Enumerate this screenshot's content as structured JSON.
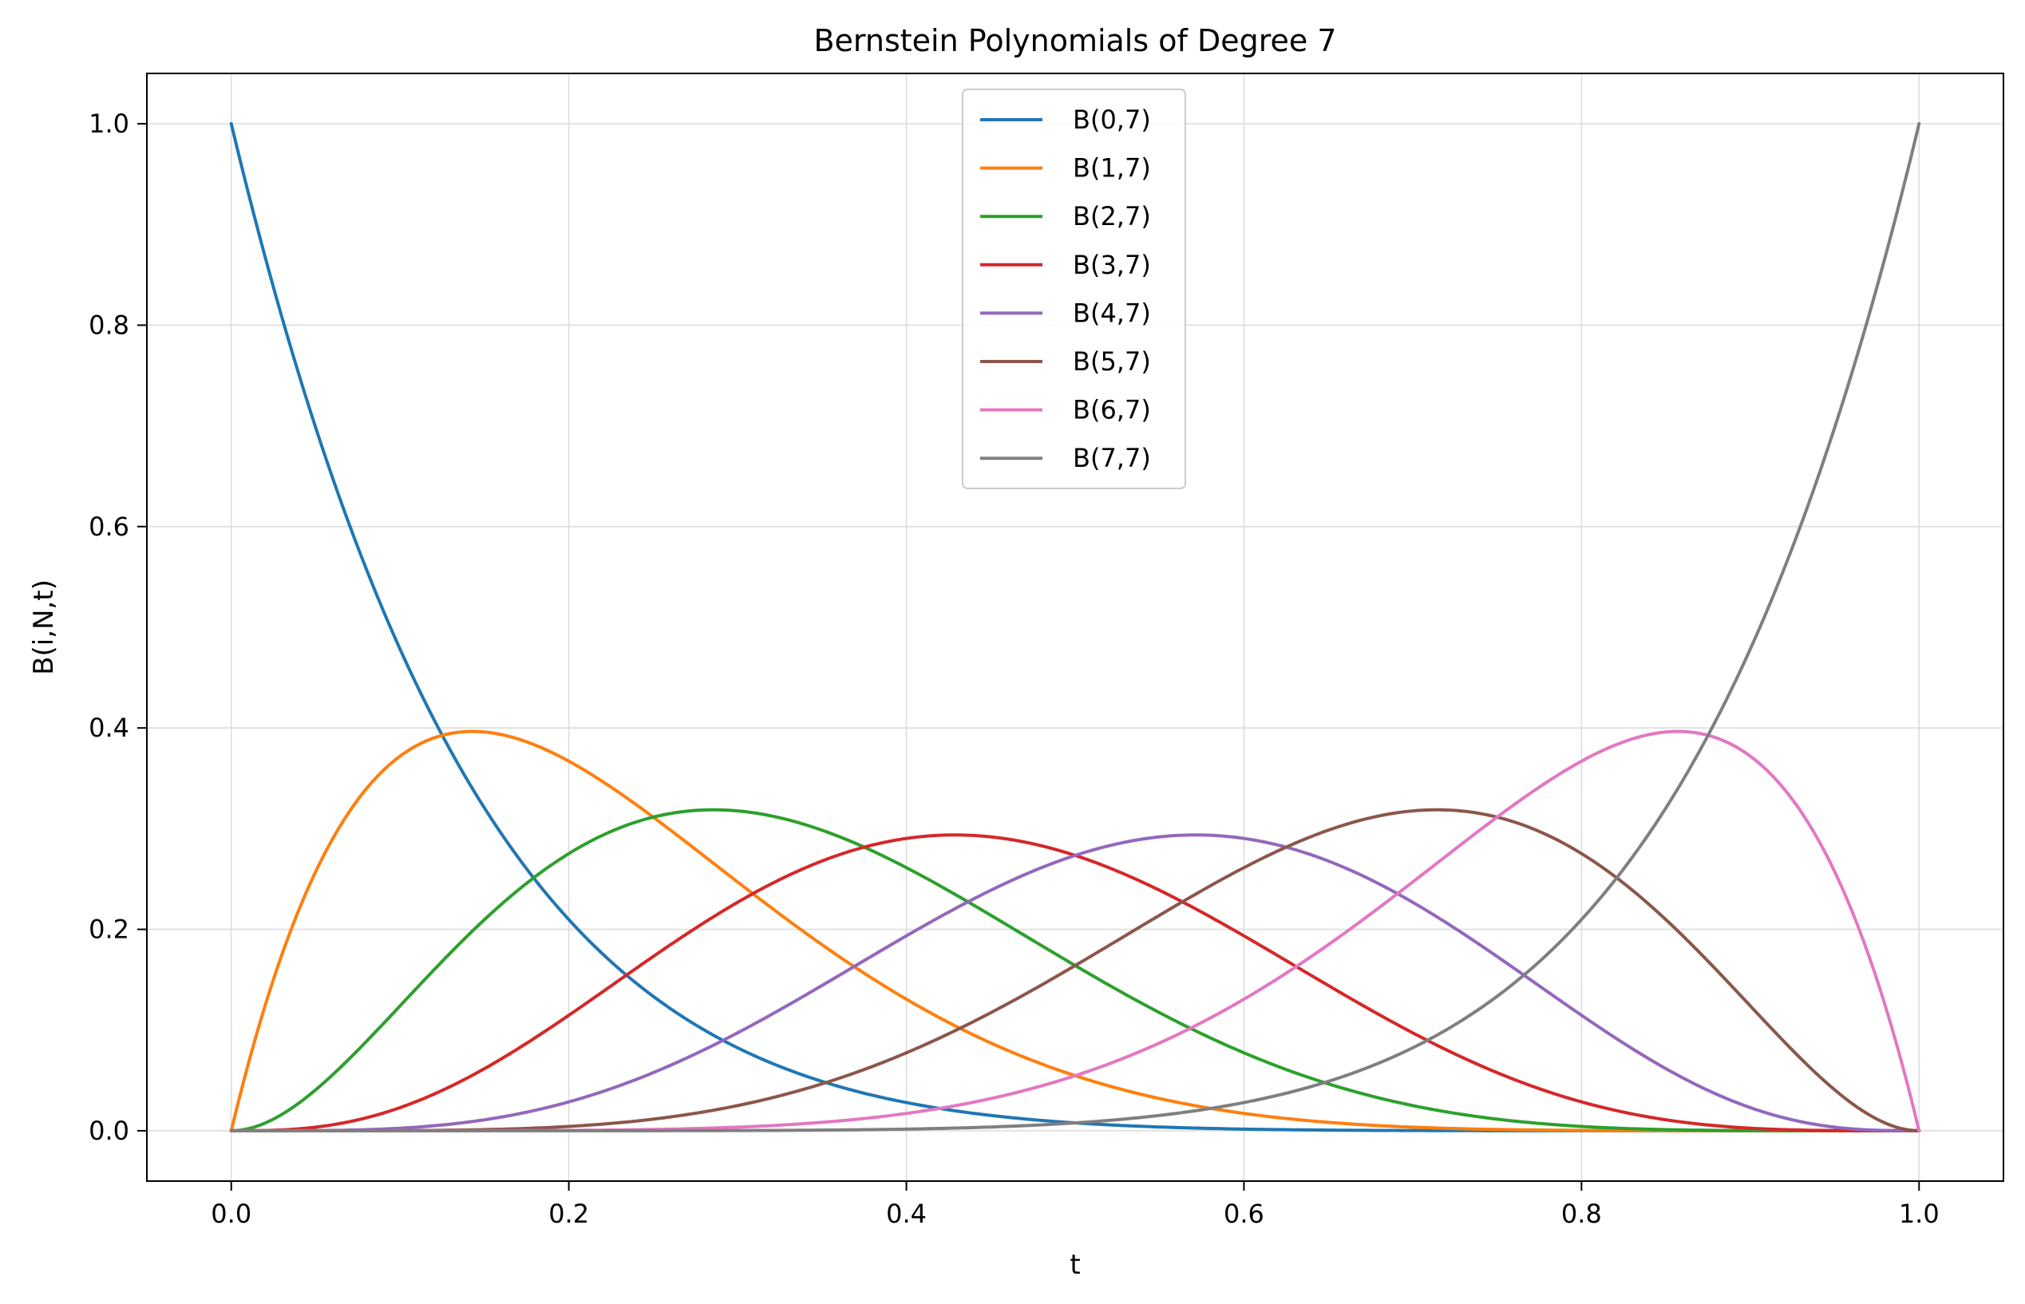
{
  "chart_data": {
    "type": "line",
    "title": "Bernstein Polynomials of Degree 7",
    "xlabel": "t",
    "ylabel": "B(i,N,t)",
    "xlim": [
      -0.05,
      1.05
    ],
    "ylim": [
      -0.05,
      1.05
    ],
    "xticks": [
      0.0,
      0.2,
      0.4,
      0.6,
      0.8,
      1.0
    ],
    "xtick_labels": [
      "0.0",
      "0.2",
      "0.4",
      "0.6",
      "0.8",
      "1.0"
    ],
    "yticks": [
      0.0,
      0.2,
      0.4,
      0.6,
      0.8,
      1.0
    ],
    "ytick_labels": [
      "0.0",
      "0.2",
      "0.4",
      "0.6",
      "0.8",
      "1.0"
    ],
    "grid": true,
    "legend_position": "upper center",
    "x": [
      0.0,
      0.0714,
      0.1429,
      0.2143,
      0.2857,
      0.3571,
      0.4286,
      0.5,
      0.5714,
      0.6429,
      0.7143,
      0.7857,
      0.8571,
      0.9286,
      1.0
    ],
    "series": [
      {
        "name": "B(0,7)",
        "color": "#1f77b4",
        "values": [
          1.0,
          0.5953,
          0.3399,
          0.1853,
          0.0949,
          0.0453,
          0.0193,
          0.0078,
          0.0026,
          0.0008,
          0.0002,
          0.0,
          0.0,
          0.0,
          0.0
        ]
      },
      {
        "name": "B(1,7)",
        "color": "#ff7f0e",
        "values": [
          0.0,
          0.3205,
          0.3966,
          0.3505,
          0.2656,
          0.1761,
          0.1033,
          0.0547,
          0.0244,
          0.0092,
          0.0028,
          0.0007,
          0.0001,
          0.0,
          0.0
        ]
      },
      {
        "name": "B(2,7)",
        "color": "#2ca02c",
        "values": [
          0.0,
          0.074,
          0.1983,
          0.2868,
          0.3187,
          0.2935,
          0.2324,
          0.1641,
          0.0991,
          0.0508,
          0.0212,
          0.0067,
          0.0013,
          0.0001,
          0.0
        ]
      },
      {
        "name": "B(3,7)",
        "color": "#d62728",
        "values": [
          0.0,
          0.0095,
          0.0551,
          0.1303,
          0.2125,
          0.2668,
          0.2905,
          0.2734,
          0.2226,
          0.1507,
          0.0849,
          0.0365,
          0.0092,
          0.0007,
          0.0
        ]
      },
      {
        "name": "B(4,7)",
        "color": "#9467bd",
        "values": [
          0.0,
          0.0007,
          0.0092,
          0.0365,
          0.0849,
          0.1507,
          0.2226,
          0.2734,
          0.2905,
          0.2668,
          0.2125,
          0.1303,
          0.0551,
          0.0095,
          0.0
        ]
      },
      {
        "name": "B(5,7)",
        "color": "#8c564b",
        "values": [
          0.0,
          0.0001,
          0.0013,
          0.0067,
          0.0212,
          0.0508,
          0.0991,
          0.1641,
          0.2324,
          0.2935,
          0.3187,
          0.2868,
          0.1983,
          0.074,
          0.0
        ]
      },
      {
        "name": "B(6,7)",
        "color": "#e377c2",
        "values": [
          0.0,
          0.0,
          0.0001,
          0.0007,
          0.0028,
          0.0092,
          0.0244,
          0.0547,
          0.1033,
          0.1761,
          0.2656,
          0.3505,
          0.3966,
          0.3205,
          0.0
        ]
      },
      {
        "name": "B(7,7)",
        "color": "#7f7f7f",
        "values": [
          0.0,
          0.0,
          0.0,
          0.0,
          0.0002,
          0.0008,
          0.0026,
          0.0078,
          0.0193,
          0.0453,
          0.0949,
          0.1853,
          0.3399,
          0.5953,
          1.0
        ]
      }
    ]
  }
}
